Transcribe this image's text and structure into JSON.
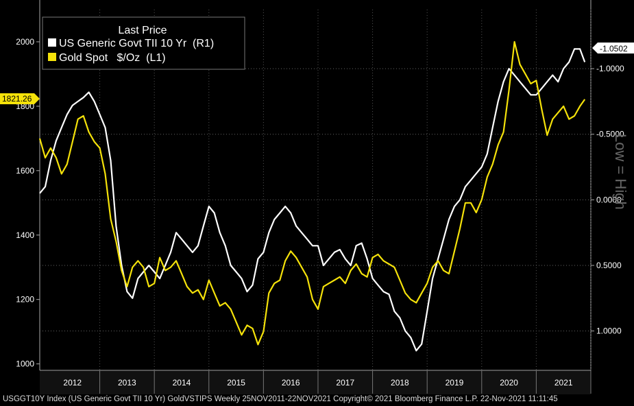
{
  "chart_data": {
    "type": "line",
    "x_years": [
      "2012",
      "2013",
      "2014",
      "2015",
      "2016",
      "2017",
      "2018",
      "2019",
      "2020",
      "2021"
    ],
    "left_axis": {
      "ticks": [
        "1000",
        "1200",
        "1400",
        "1600",
        "1800",
        "2000"
      ],
      "ylim": [
        980,
        2100
      ]
    },
    "right_axis": {
      "ticks": [
        "-1.0000",
        "-0.5000",
        "0.0000",
        "0.5000",
        "1.0000"
      ],
      "ylim": [
        -1.45,
        1.3
      ],
      "inverted": true,
      "label": "Low = High"
    },
    "legend": {
      "title": "Last Price"
    },
    "series": [
      {
        "name": "US Generic Govt TII 10 Yr  (R1)",
        "color": "#ffffff",
        "axis": "right",
        "x": [
          2011.9,
          2012.0,
          2012.1,
          2012.2,
          2012.3,
          2012.4,
          2012.5,
          2012.6,
          2012.7,
          2012.8,
          2012.9,
          2013.0,
          2013.1,
          2013.2,
          2013.3,
          2013.4,
          2013.5,
          2013.6,
          2013.7,
          2013.8,
          2013.9,
          2014.0,
          2014.1,
          2014.2,
          2014.3,
          2014.4,
          2014.5,
          2014.6,
          2014.7,
          2014.8,
          2014.9,
          2015.0,
          2015.1,
          2015.2,
          2015.3,
          2015.4,
          2015.5,
          2015.6,
          2015.7,
          2015.8,
          2015.9,
          2016.0,
          2016.1,
          2016.2,
          2016.3,
          2016.4,
          2016.5,
          2016.6,
          2016.7,
          2016.8,
          2016.9,
          2017.0,
          2017.1,
          2017.2,
          2017.3,
          2017.4,
          2017.5,
          2017.6,
          2017.7,
          2017.8,
          2017.9,
          2018.0,
          2018.1,
          2018.2,
          2018.3,
          2018.4,
          2018.5,
          2018.6,
          2018.7,
          2018.8,
          2018.9,
          2019.0,
          2019.1,
          2019.2,
          2019.3,
          2019.4,
          2019.5,
          2019.6,
          2019.7,
          2019.8,
          2019.9,
          2020.0,
          2020.1,
          2020.2,
          2020.3,
          2020.4,
          2020.5,
          2020.6,
          2020.7,
          2020.8,
          2020.9,
          2021.0,
          2021.1,
          2021.2,
          2021.3,
          2021.4,
          2021.5,
          2021.6,
          2021.7,
          2021.8,
          2021.89
        ],
        "values": [
          -0.05,
          -0.1,
          -0.3,
          -0.45,
          -0.55,
          -0.65,
          -0.72,
          -0.75,
          -0.78,
          -0.82,
          -0.75,
          -0.65,
          -0.55,
          -0.3,
          0.2,
          0.5,
          0.7,
          0.75,
          0.6,
          0.55,
          0.5,
          0.55,
          0.6,
          0.5,
          0.4,
          0.25,
          0.3,
          0.35,
          0.4,
          0.35,
          0.2,
          0.05,
          0.1,
          0.25,
          0.35,
          0.5,
          0.55,
          0.6,
          0.7,
          0.65,
          0.45,
          0.4,
          0.25,
          0.15,
          0.1,
          0.05,
          0.1,
          0.2,
          0.25,
          0.3,
          0.35,
          0.35,
          0.5,
          0.45,
          0.4,
          0.38,
          0.45,
          0.5,
          0.35,
          0.33,
          0.45,
          0.6,
          0.65,
          0.7,
          0.72,
          0.85,
          0.9,
          1.0,
          1.05,
          1.15,
          1.1,
          0.85,
          0.6,
          0.45,
          0.3,
          0.15,
          0.05,
          0.0,
          -0.1,
          -0.15,
          -0.2,
          -0.25,
          -0.35,
          -0.55,
          -0.75,
          -0.9,
          -1.0,
          -0.95,
          -0.9,
          -0.85,
          -0.8,
          -0.8,
          -0.85,
          -0.9,
          -0.95,
          -0.9,
          -1.0,
          -1.05,
          -1.15,
          -1.15,
          -1.0502
        ]
      },
      {
        "name": "Gold Spot   $/Oz  (L1)",
        "color": "#f5e20a",
        "axis": "left",
        "x": [
          2011.9,
          2012.0,
          2012.1,
          2012.2,
          2012.3,
          2012.4,
          2012.5,
          2012.6,
          2012.7,
          2012.8,
          2012.9,
          2013.0,
          2013.1,
          2013.2,
          2013.3,
          2013.4,
          2013.5,
          2013.6,
          2013.7,
          2013.8,
          2013.9,
          2014.0,
          2014.1,
          2014.2,
          2014.3,
          2014.4,
          2014.5,
          2014.6,
          2014.7,
          2014.8,
          2014.9,
          2015.0,
          2015.1,
          2015.2,
          2015.3,
          2015.4,
          2015.5,
          2015.6,
          2015.7,
          2015.8,
          2015.9,
          2016.0,
          2016.1,
          2016.2,
          2016.3,
          2016.4,
          2016.5,
          2016.6,
          2016.7,
          2016.8,
          2016.9,
          2017.0,
          2017.1,
          2017.2,
          2017.3,
          2017.4,
          2017.5,
          2017.6,
          2017.7,
          2017.8,
          2017.9,
          2018.0,
          2018.1,
          2018.2,
          2018.3,
          2018.4,
          2018.5,
          2018.6,
          2018.7,
          2018.8,
          2018.9,
          2019.0,
          2019.1,
          2019.2,
          2019.3,
          2019.4,
          2019.5,
          2019.6,
          2019.7,
          2019.8,
          2019.9,
          2020.0,
          2020.1,
          2020.2,
          2020.3,
          2020.4,
          2020.5,
          2020.6,
          2020.7,
          2020.8,
          2020.9,
          2021.0,
          2021.1,
          2021.2,
          2021.3,
          2021.4,
          2021.5,
          2021.6,
          2021.7,
          2021.8,
          2021.89
        ],
        "values": [
          1700,
          1640,
          1670,
          1640,
          1590,
          1620,
          1690,
          1760,
          1770,
          1720,
          1690,
          1670,
          1590,
          1450,
          1380,
          1290,
          1240,
          1300,
          1320,
          1300,
          1240,
          1250,
          1330,
          1290,
          1300,
          1320,
          1280,
          1240,
          1220,
          1230,
          1200,
          1260,
          1220,
          1180,
          1190,
          1170,
          1130,
          1090,
          1120,
          1110,
          1060,
          1100,
          1220,
          1250,
          1260,
          1320,
          1350,
          1330,
          1300,
          1270,
          1200,
          1170,
          1240,
          1250,
          1260,
          1270,
          1250,
          1290,
          1310,
          1280,
          1270,
          1330,
          1340,
          1320,
          1310,
          1300,
          1260,
          1220,
          1200,
          1190,
          1220,
          1250,
          1300,
          1320,
          1290,
          1280,
          1350,
          1420,
          1500,
          1500,
          1470,
          1510,
          1580,
          1620,
          1680,
          1720,
          1850,
          2000,
          1930,
          1900,
          1870,
          1880,
          1790,
          1710,
          1760,
          1780,
          1800,
          1760,
          1770,
          1800,
          1821.26
        ]
      }
    ],
    "left_badge": "1821.26",
    "right_badge": "-1.0502"
  },
  "footer": "USGGT10Y Index (US Generic Govt TII 10 Yr) GoldVSTIPS  Weekly 25NOV2011-22NOV2021 Copyright© 2021 Bloomberg Finance L.P. 22-Nov-2021 11:11:45"
}
